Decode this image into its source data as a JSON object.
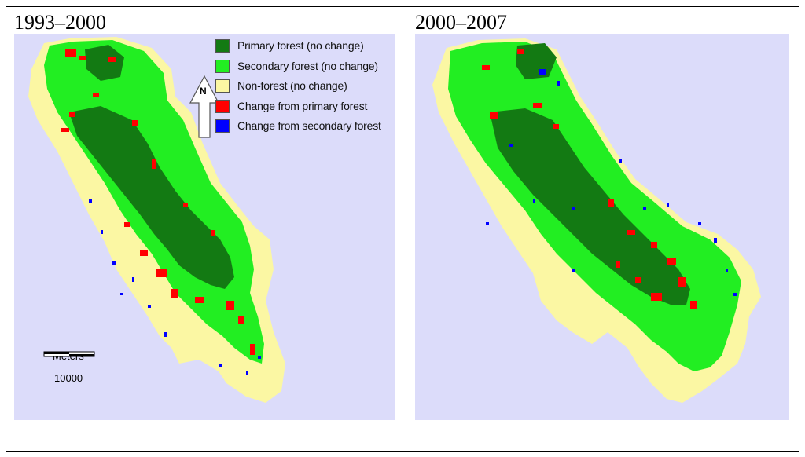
{
  "panels": [
    {
      "title": "1993–2000"
    },
    {
      "title": "2000–2007"
    }
  ],
  "legend": {
    "items": [
      {
        "label": "Primary forest (no change)",
        "color": "#137a13"
      },
      {
        "label": "Secondary forest (no change)",
        "color": "#22ee22"
      },
      {
        "label": "Non-forest (no change)",
        "color": "#fbf7a3"
      },
      {
        "label": "Change from primary forest",
        "color": "#ff0000"
      },
      {
        "label": "Change from secondary forest",
        "color": "#0000ff"
      }
    ]
  },
  "north_arrow": {
    "letter": "N",
    "icon": "north-arrow-icon"
  },
  "scale_bar": {
    "unit": "Meters",
    "value": "10000"
  },
  "colors": {
    "background": "#dcdcfa",
    "primary": "#137a13",
    "secondary": "#22ee22",
    "nonforest": "#fbf7a3",
    "change_primary": "#ff0000",
    "change_secondary": "#0000ff"
  }
}
